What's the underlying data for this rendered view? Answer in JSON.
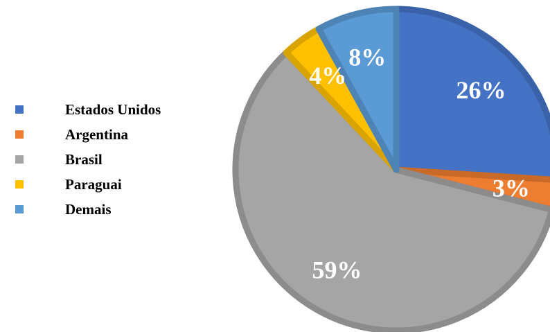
{
  "chart_data": {
    "type": "pie",
    "categories": [
      "Estados Unidos",
      "Argentina",
      "Brasil",
      "Paraguai",
      "Demais"
    ],
    "values": [
      26,
      3,
      59,
      4,
      8
    ],
    "labels": [
      "26%",
      "3%",
      "59%",
      "4%",
      "8%"
    ],
    "colors": [
      "#4472C4",
      "#ED7D31",
      "#A5A5A5",
      "#FFC000",
      "#5B9BD5"
    ],
    "edge_colors": [
      "#3A62A8",
      "#C96A28",
      "#8C8C8C",
      "#D9A300",
      "#4D84B5"
    ],
    "legend_position": "left"
  }
}
